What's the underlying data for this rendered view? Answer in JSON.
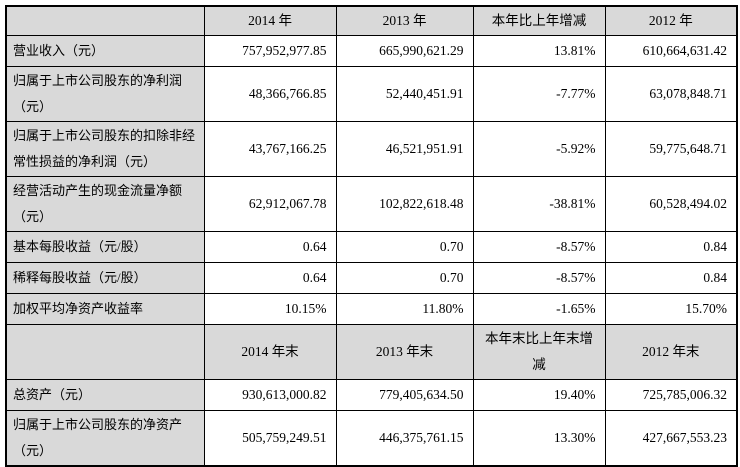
{
  "table": {
    "title": "key-financial-indicators-table",
    "colors": {
      "header_bg": "#d9d9d9",
      "label_bg": "#d9d9d9",
      "cell_bg": "#ffffff",
      "border": "#000000",
      "text": "#000000"
    },
    "sections": [
      {
        "header": [
          "",
          "2014 年",
          "2013 年",
          "本年比上年增减",
          "2012 年"
        ],
        "rows": [
          {
            "label": "营业收入（元）",
            "values": [
              "757,952,977.85",
              "665,990,621.29",
              "13.81%",
              "610,664,631.42"
            ]
          },
          {
            "label": "归属于上市公司股东的净利润（元）",
            "values": [
              "48,366,766.85",
              "52,440,451.91",
              "-7.77%",
              "63,078,848.71"
            ]
          },
          {
            "label": "归属于上市公司股东的扣除非经常性损益的净利润（元）",
            "values": [
              "43,767,166.25",
              "46,521,951.91",
              "-5.92%",
              "59,775,648.71"
            ]
          },
          {
            "label": "经营活动产生的现金流量净额（元）",
            "values": [
              "62,912,067.78",
              "102,822,618.48",
              "-38.81%",
              "60,528,494.02"
            ]
          },
          {
            "label": "基本每股收益（元/股）",
            "values": [
              "0.64",
              "0.70",
              "-8.57%",
              "0.84"
            ]
          },
          {
            "label": "稀释每股收益（元/股）",
            "values": [
              "0.64",
              "0.70",
              "-8.57%",
              "0.84"
            ]
          },
          {
            "label": "加权平均净资产收益率",
            "values": [
              "10.15%",
              "11.80%",
              "-1.65%",
              "15.70%"
            ]
          }
        ]
      },
      {
        "header": [
          "",
          "2014 年末",
          "2013 年末",
          "本年末比上年末增减",
          "2012 年末"
        ],
        "rows": [
          {
            "label": "总资产（元）",
            "values": [
              "930,613,000.82",
              "779,405,634.50",
              "19.40%",
              "725,785,006.32"
            ]
          },
          {
            "label": "归属于上市公司股东的净资产（元）",
            "values": [
              "505,759,249.51",
              "446,375,761.15",
              "13.30%",
              "427,667,553.23"
            ]
          }
        ]
      }
    ]
  }
}
